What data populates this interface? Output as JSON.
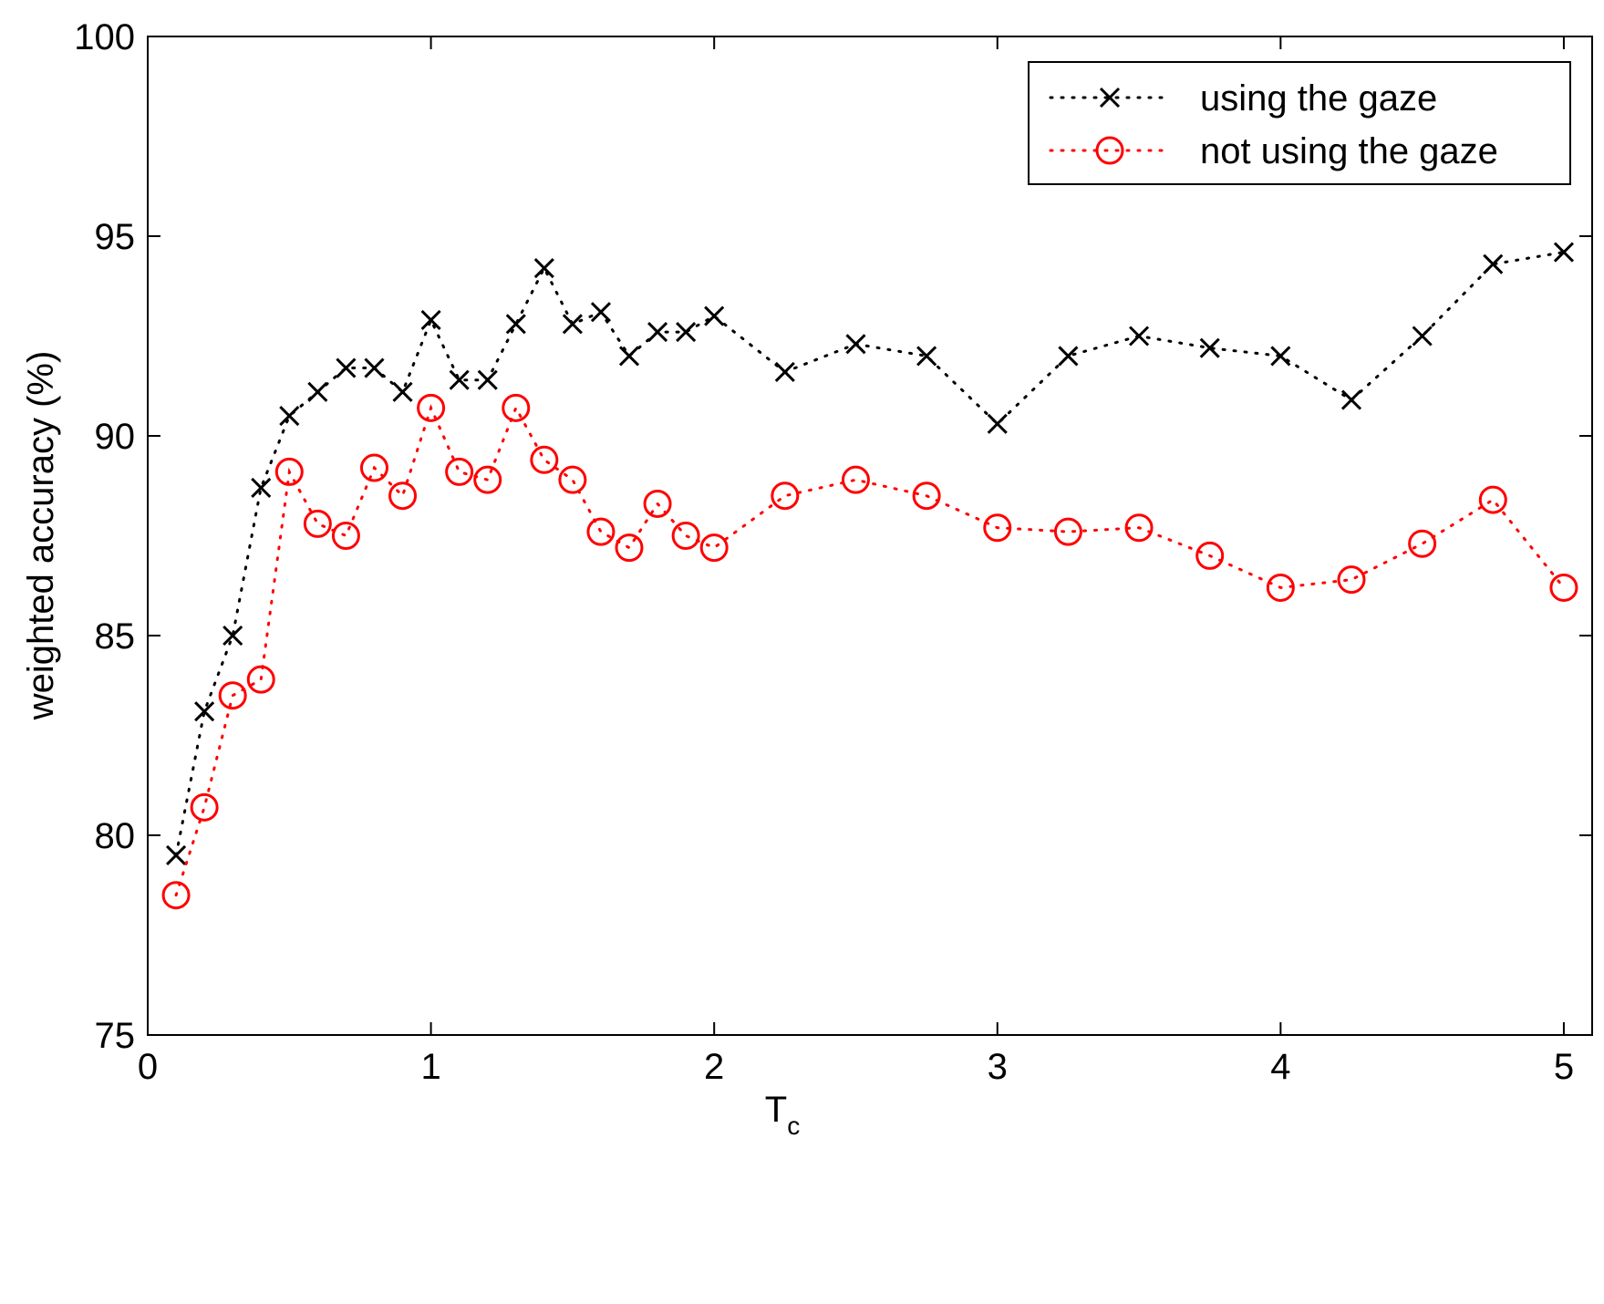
{
  "chart_data": {
    "type": "line",
    "title": "",
    "xlabel": "T",
    "xlabel_subscript": "c",
    "ylabel": "weighted accuracy (%)",
    "xlim": [
      0,
      5.1
    ],
    "ylim": [
      75,
      100
    ],
    "xticks": [
      0,
      1,
      2,
      3,
      4,
      5
    ],
    "yticks": [
      75,
      80,
      85,
      90,
      95,
      100
    ],
    "grid": false,
    "legend_position": "top-right",
    "x": [
      0.1,
      0.2,
      0.3,
      0.4,
      0.5,
      0.6,
      0.7,
      0.8,
      0.9,
      1.0,
      1.1,
      1.2,
      1.3,
      1.4,
      1.5,
      1.6,
      1.7,
      1.8,
      1.9,
      2.0,
      2.25,
      2.5,
      2.75,
      3.0,
      3.25,
      3.5,
      3.75,
      4.0,
      4.25,
      4.5,
      4.75,
      5.0
    ],
    "series": [
      {
        "name": "using the gaze",
        "color": "#000000",
        "marker": "x",
        "line_style": "dotted",
        "values": [
          79.5,
          83.1,
          85.0,
          88.7,
          90.5,
          91.1,
          91.7,
          91.7,
          91.1,
          92.9,
          91.4,
          91.4,
          92.8,
          94.2,
          92.8,
          93.1,
          92.0,
          92.6,
          92.6,
          93.0,
          91.6,
          92.3,
          92.0,
          90.3,
          92.0,
          92.5,
          92.2,
          92.0,
          90.9,
          92.5,
          94.3,
          94.6
        ]
      },
      {
        "name": "not using the gaze",
        "color": "#ff0000",
        "marker": "o",
        "line_style": "dotted",
        "values": [
          78.5,
          80.7,
          83.5,
          83.9,
          89.1,
          87.8,
          87.5,
          89.2,
          88.5,
          90.7,
          89.1,
          88.9,
          90.7,
          89.4,
          88.9,
          87.6,
          87.2,
          88.3,
          87.5,
          87.2,
          88.5,
          88.9,
          88.5,
          87.7,
          87.6,
          87.7,
          87.0,
          86.2,
          86.4,
          87.3,
          88.4,
          86.2
        ]
      }
    ]
  }
}
